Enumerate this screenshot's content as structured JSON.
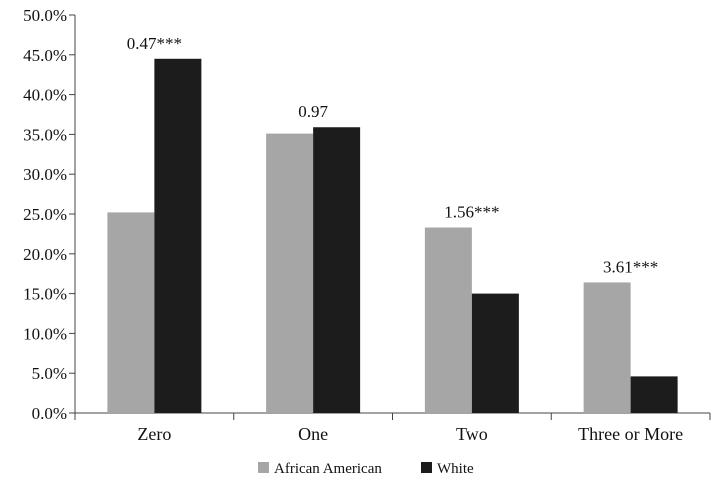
{
  "chart_data": {
    "type": "bar",
    "categories": [
      "Zero",
      "One",
      "Two",
      "Three or More"
    ],
    "series": [
      {
        "name": "African American",
        "color": "#a6a6a6",
        "values": [
          25.2,
          35.1,
          23.3,
          16.4
        ]
      },
      {
        "name": "White",
        "color": "#1c1c1c",
        "values": [
          44.5,
          35.9,
          15.0,
          4.6
        ]
      }
    ],
    "annotations": [
      "0.47***",
      "0.97",
      "1.56***",
      "3.61***"
    ],
    "y_tick_labels": [
      "0.0%",
      "5.0%",
      "10.0%",
      "15.0%",
      "20.0%",
      "25.0%",
      "30.0%",
      "35.0%",
      "40.0%",
      "45.0%",
      "50.0%"
    ],
    "ylim": [
      0,
      50
    ],
    "y_unit": "%",
    "grid": false,
    "legend_position": "bottom-center"
  }
}
